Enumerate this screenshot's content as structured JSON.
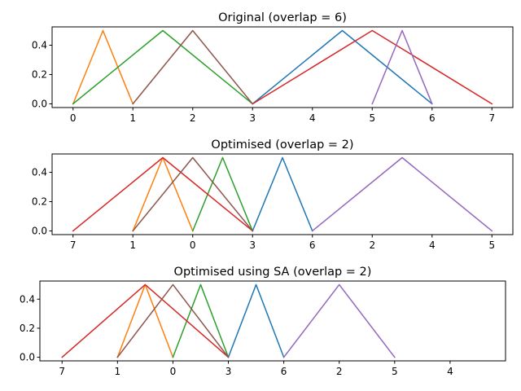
{
  "colors": [
    "#1f77b4",
    "#ff7f0e",
    "#2ca02c",
    "#d62728",
    "#9467bd",
    "#8c564b"
  ],
  "chart_data": [
    {
      "type": "line",
      "title": "Original (overlap = 6)",
      "ylim": [
        -0.025,
        0.525
      ],
      "yticks": [
        0.0,
        0.2,
        0.4
      ],
      "ytick_labels": [
        "0.0",
        "0.2",
        "0.4"
      ],
      "xlim": [
        -0.35,
        7.35
      ],
      "xticks": [
        0,
        1,
        2,
        3,
        4,
        5,
        6,
        7
      ],
      "xtick_labels": [
        "0",
        "1",
        "2",
        "3",
        "4",
        "5",
        "6",
        "7"
      ],
      "series": [
        {
          "color": "#1f77b4",
          "x": [
            3,
            4.5,
            6
          ],
          "y": [
            0,
            0.5,
            0
          ]
        },
        {
          "color": "#ff7f0e",
          "x": [
            0,
            0.5,
            1
          ],
          "y": [
            0,
            0.5,
            0
          ]
        },
        {
          "color": "#2ca02c",
          "x": [
            0,
            1.5,
            3
          ],
          "y": [
            0,
            0.5,
            0
          ]
        },
        {
          "color": "#d62728",
          "x": [
            3,
            5,
            7
          ],
          "y": [
            0,
            0.5,
            0
          ]
        },
        {
          "color": "#9467bd",
          "x": [
            5,
            5.5,
            6
          ],
          "y": [
            0,
            0.5,
            0
          ]
        },
        {
          "color": "#8c564b",
          "x": [
            1,
            2,
            3
          ],
          "y": [
            0,
            0.5,
            0
          ]
        }
      ]
    },
    {
      "type": "line",
      "title": "Optimised (overlap = 2)",
      "ylim": [
        -0.025,
        0.525
      ],
      "yticks": [
        0.0,
        0.2,
        0.4
      ],
      "ytick_labels": [
        "0.0",
        "0.2",
        "0.4"
      ],
      "xlim": [
        -0.35,
        7.35
      ],
      "xticks": [
        0,
        1,
        2,
        3,
        4,
        5,
        6,
        7
      ],
      "xtick_labels": [
        "7",
        "1",
        "0",
        "3",
        "6",
        "2",
        "4",
        "5"
      ],
      "series": [
        {
          "color": "#1f77b4",
          "x": [
            3,
            3.5,
            4
          ],
          "y": [
            0,
            0.5,
            0
          ]
        },
        {
          "color": "#ff7f0e",
          "x": [
            1,
            1.5,
            2
          ],
          "y": [
            0,
            0.5,
            0
          ]
        },
        {
          "color": "#2ca02c",
          "x": [
            2,
            2.5,
            3
          ],
          "y": [
            0,
            0.5,
            0
          ]
        },
        {
          "color": "#d62728",
          "x": [
            0,
            1.5,
            3
          ],
          "y": [
            0,
            0.5,
            0
          ]
        },
        {
          "color": "#9467bd",
          "x": [
            4,
            5.5,
            7
          ],
          "y": [
            0,
            0.5,
            0
          ]
        },
        {
          "color": "#8c564b",
          "x": [
            1,
            2,
            3
          ],
          "y": [
            0,
            0.5,
            0
          ]
        }
      ]
    },
    {
      "type": "line",
      "title": "Optimised using SA (overlap = 2)",
      "ylim": [
        -0.025,
        0.525
      ],
      "yticks": [
        0.0,
        0.2,
        0.4
      ],
      "ytick_labels": [
        "0.0",
        "0.2",
        "0.4"
      ],
      "xlim": [
        -0.4,
        8.0
      ],
      "xticks": [
        0,
        1,
        2,
        3,
        4,
        5,
        6,
        7
      ],
      "xtick_labels": [
        "7",
        "1",
        "0",
        "3",
        "6",
        "2",
        "5",
        "4"
      ],
      "series": [
        {
          "color": "#1f77b4",
          "x": [
            3,
            3.5,
            4
          ],
          "y": [
            0,
            0.5,
            0
          ]
        },
        {
          "color": "#ff7f0e",
          "x": [
            1,
            1.5,
            2
          ],
          "y": [
            0,
            0.5,
            0
          ]
        },
        {
          "color": "#2ca02c",
          "x": [
            2,
            2.5,
            3
          ],
          "y": [
            0,
            0.5,
            0
          ]
        },
        {
          "color": "#d62728",
          "x": [
            0,
            1.5,
            3
          ],
          "y": [
            0,
            0.5,
            0
          ]
        },
        {
          "color": "#9467bd",
          "x": [
            4,
            5,
            6
          ],
          "y": [
            0,
            0.5,
            0
          ]
        },
        {
          "color": "#8c564b",
          "x": [
            1,
            2,
            3
          ],
          "y": [
            0,
            0.5,
            0
          ]
        }
      ]
    }
  ]
}
